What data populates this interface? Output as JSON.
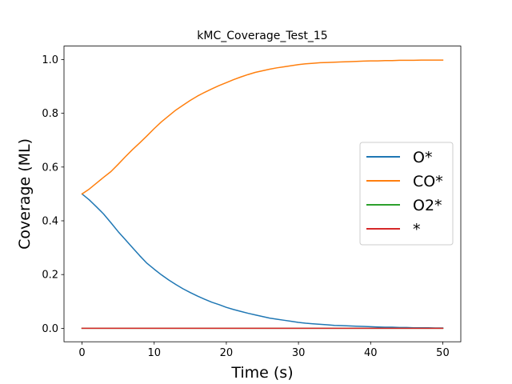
{
  "chart_data": {
    "type": "line",
    "title": "kMC_Coverage_Test_15",
    "xlabel": "Time (s)",
    "ylabel": "Coverage (ML)",
    "xlim": [
      -2.5,
      52.5
    ],
    "ylim": [
      -0.05,
      1.05
    ],
    "xticks": [
      0,
      10,
      20,
      30,
      40,
      50
    ],
    "yticks": [
      0.0,
      0.2,
      0.4,
      0.6,
      0.8,
      1.0
    ],
    "xtick_labels": [
      "0",
      "10",
      "20",
      "30",
      "40",
      "50"
    ],
    "ytick_labels": [
      "0.0",
      "0.2",
      "0.4",
      "0.6",
      "0.8",
      "1.0"
    ],
    "grid": false,
    "legend_position": "center-right",
    "x": [
      0,
      1,
      2,
      3,
      4,
      5,
      6,
      7,
      8,
      9,
      10,
      11,
      12,
      13,
      14,
      15,
      16,
      17,
      18,
      19,
      20,
      21,
      22,
      23,
      24,
      25,
      26,
      27,
      28,
      29,
      30,
      31,
      32,
      33,
      34,
      35,
      36,
      37,
      38,
      39,
      40,
      41,
      42,
      43,
      44,
      45,
      46,
      47,
      48,
      49,
      50
    ],
    "series": [
      {
        "name": "O*",
        "color": "#1f77b4",
        "values": [
          0.5,
          0.478,
          0.452,
          0.425,
          0.393,
          0.36,
          0.33,
          0.3,
          0.27,
          0.242,
          0.22,
          0.199,
          0.18,
          0.163,
          0.147,
          0.133,
          0.12,
          0.108,
          0.097,
          0.088,
          0.078,
          0.07,
          0.063,
          0.056,
          0.05,
          0.044,
          0.038,
          0.034,
          0.03,
          0.026,
          0.022,
          0.019,
          0.017,
          0.015,
          0.013,
          0.011,
          0.01,
          0.009,
          0.008,
          0.007,
          0.006,
          0.005,
          0.004,
          0.004,
          0.003,
          0.003,
          0.002,
          0.002,
          0.002,
          0.001,
          0.001
        ]
      },
      {
        "name": "CO*",
        "color": "#ff7f0e",
        "values": [
          0.5,
          0.518,
          0.54,
          0.562,
          0.583,
          0.61,
          0.638,
          0.665,
          0.69,
          0.716,
          0.743,
          0.768,
          0.79,
          0.812,
          0.83,
          0.848,
          0.864,
          0.878,
          0.891,
          0.903,
          0.914,
          0.925,
          0.935,
          0.944,
          0.952,
          0.958,
          0.964,
          0.969,
          0.973,
          0.977,
          0.981,
          0.984,
          0.986,
          0.988,
          0.989,
          0.99,
          0.991,
          0.992,
          0.993,
          0.994,
          0.995,
          0.995,
          0.996,
          0.996,
          0.997,
          0.997,
          0.997,
          0.998,
          0.998,
          0.998,
          0.998
        ]
      },
      {
        "name": "O2*",
        "color": "#2ca02c",
        "values": [
          0,
          0,
          0,
          0,
          0,
          0,
          0,
          0,
          0,
          0,
          0,
          0,
          0,
          0,
          0,
          0,
          0,
          0,
          0,
          0,
          0,
          0,
          0,
          0,
          0,
          0,
          0,
          0,
          0,
          0,
          0,
          0,
          0,
          0,
          0,
          0,
          0,
          0,
          0,
          0,
          0,
          0,
          0,
          0,
          0,
          0,
          0,
          0,
          0,
          0,
          0
        ]
      },
      {
        "name": "*",
        "color": "#d62728",
        "values": [
          0,
          0,
          0,
          0,
          0,
          0,
          0,
          0,
          0,
          0,
          0,
          0,
          0,
          0,
          0,
          0,
          0,
          0,
          0,
          0,
          0,
          0,
          0,
          0,
          0,
          0,
          0,
          0,
          0,
          0,
          0,
          0,
          0,
          0,
          0,
          0,
          0,
          0,
          0,
          0,
          0,
          0,
          0,
          0,
          0,
          0,
          0,
          0,
          0,
          0,
          0
        ]
      }
    ]
  }
}
